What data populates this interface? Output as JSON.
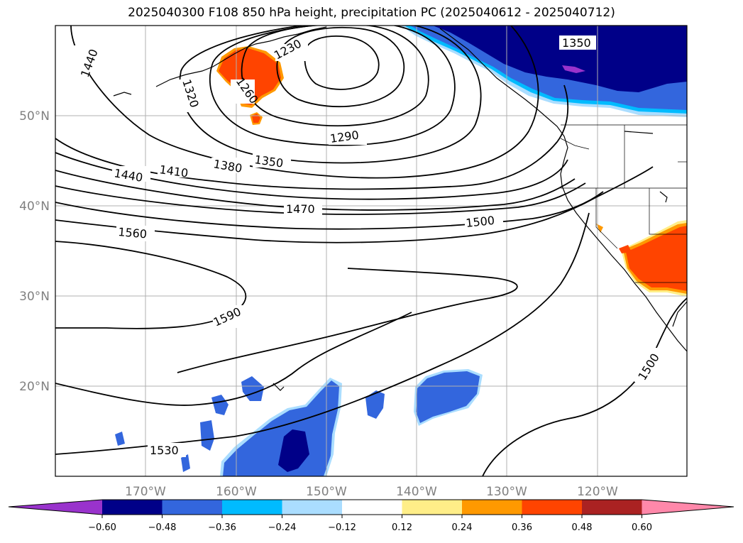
{
  "title": "2025040300 F108 850 hPa height, precipitation PC (2025040612 - 2025040712)",
  "map": {
    "lon_labels": [
      "170°W",
      "160°W",
      "150°W",
      "140°W",
      "130°W",
      "120°W"
    ],
    "lat_labels": [
      "50°N",
      "40°N",
      "30°N",
      "20°N"
    ],
    "contour_labels": {
      "c1440a": "1440",
      "c1320": "1320",
      "c1230": "1230",
      "c1260": "1260",
      "c1290": "1290",
      "c1350a": "1350",
      "c1350b": "1350",
      "c1380": "1380",
      "c1410": "1410",
      "c1440b": "1440",
      "c1470": "1470",
      "c1500a": "1500",
      "c1500b": "1500",
      "c1560": "1560",
      "c1590": "1590",
      "c1530": "1530"
    },
    "colors": {
      "purple": "#9933cc",
      "navy": "#000088",
      "blue": "#3366dd",
      "cyan": "#00bbff",
      "lightblue": "#aaddff",
      "yellow": "#ffee88",
      "orange": "#ff9900",
      "redorange": "#ff4400",
      "darkred": "#aa2222",
      "pink": "#ff88aa"
    }
  },
  "colorbar": {
    "ticks": [
      "−0.60",
      "−0.48",
      "−0.36",
      "−0.24",
      "−0.12",
      "0.12",
      "0.24",
      "0.36",
      "0.48",
      "0.60"
    ],
    "colors": [
      "#9933cc",
      "#000088",
      "#3366dd",
      "#00bbff",
      "#aaddff",
      "#ffffff",
      "#ffee88",
      "#ff9900",
      "#ff4400",
      "#aa2222",
      "#ff88aa"
    ]
  }
}
